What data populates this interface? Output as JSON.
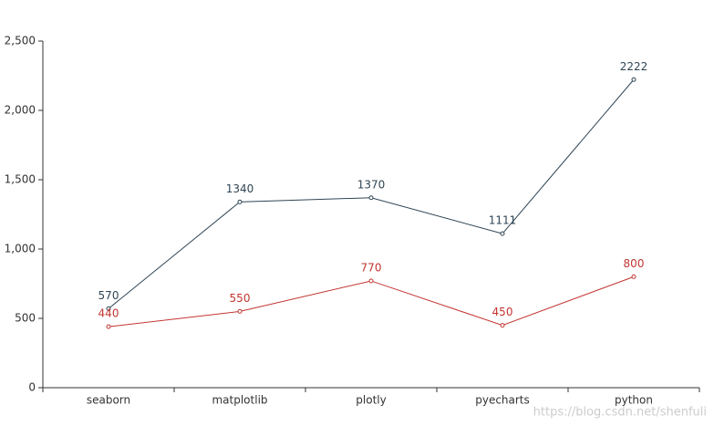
{
  "chart_data": {
    "type": "line",
    "categories": [
      "seaborn",
      "matplotlib",
      "plotly",
      "pyecharts",
      "python"
    ],
    "series": [
      {
        "color": "#2f4554",
        "values": [
          570,
          1340,
          1370,
          1111,
          2222
        ]
      },
      {
        "color": "#c23531",
        "values": [
          440,
          550,
          770,
          450,
          800
        ]
      }
    ],
    "ylim": [
      0,
      2500
    ],
    "yticks": [
      0,
      500,
      {
        "value": 1000,
        "label": "1,000"
      },
      {
        "value": 1500,
        "label": "1,500"
      },
      {
        "value": 2000,
        "label": "2,000"
      },
      {
        "value": 2500,
        "label": "2,500"
      }
    ],
    "grid": false,
    "watermark": "https://blog.csdn.net/shenfuli"
  }
}
